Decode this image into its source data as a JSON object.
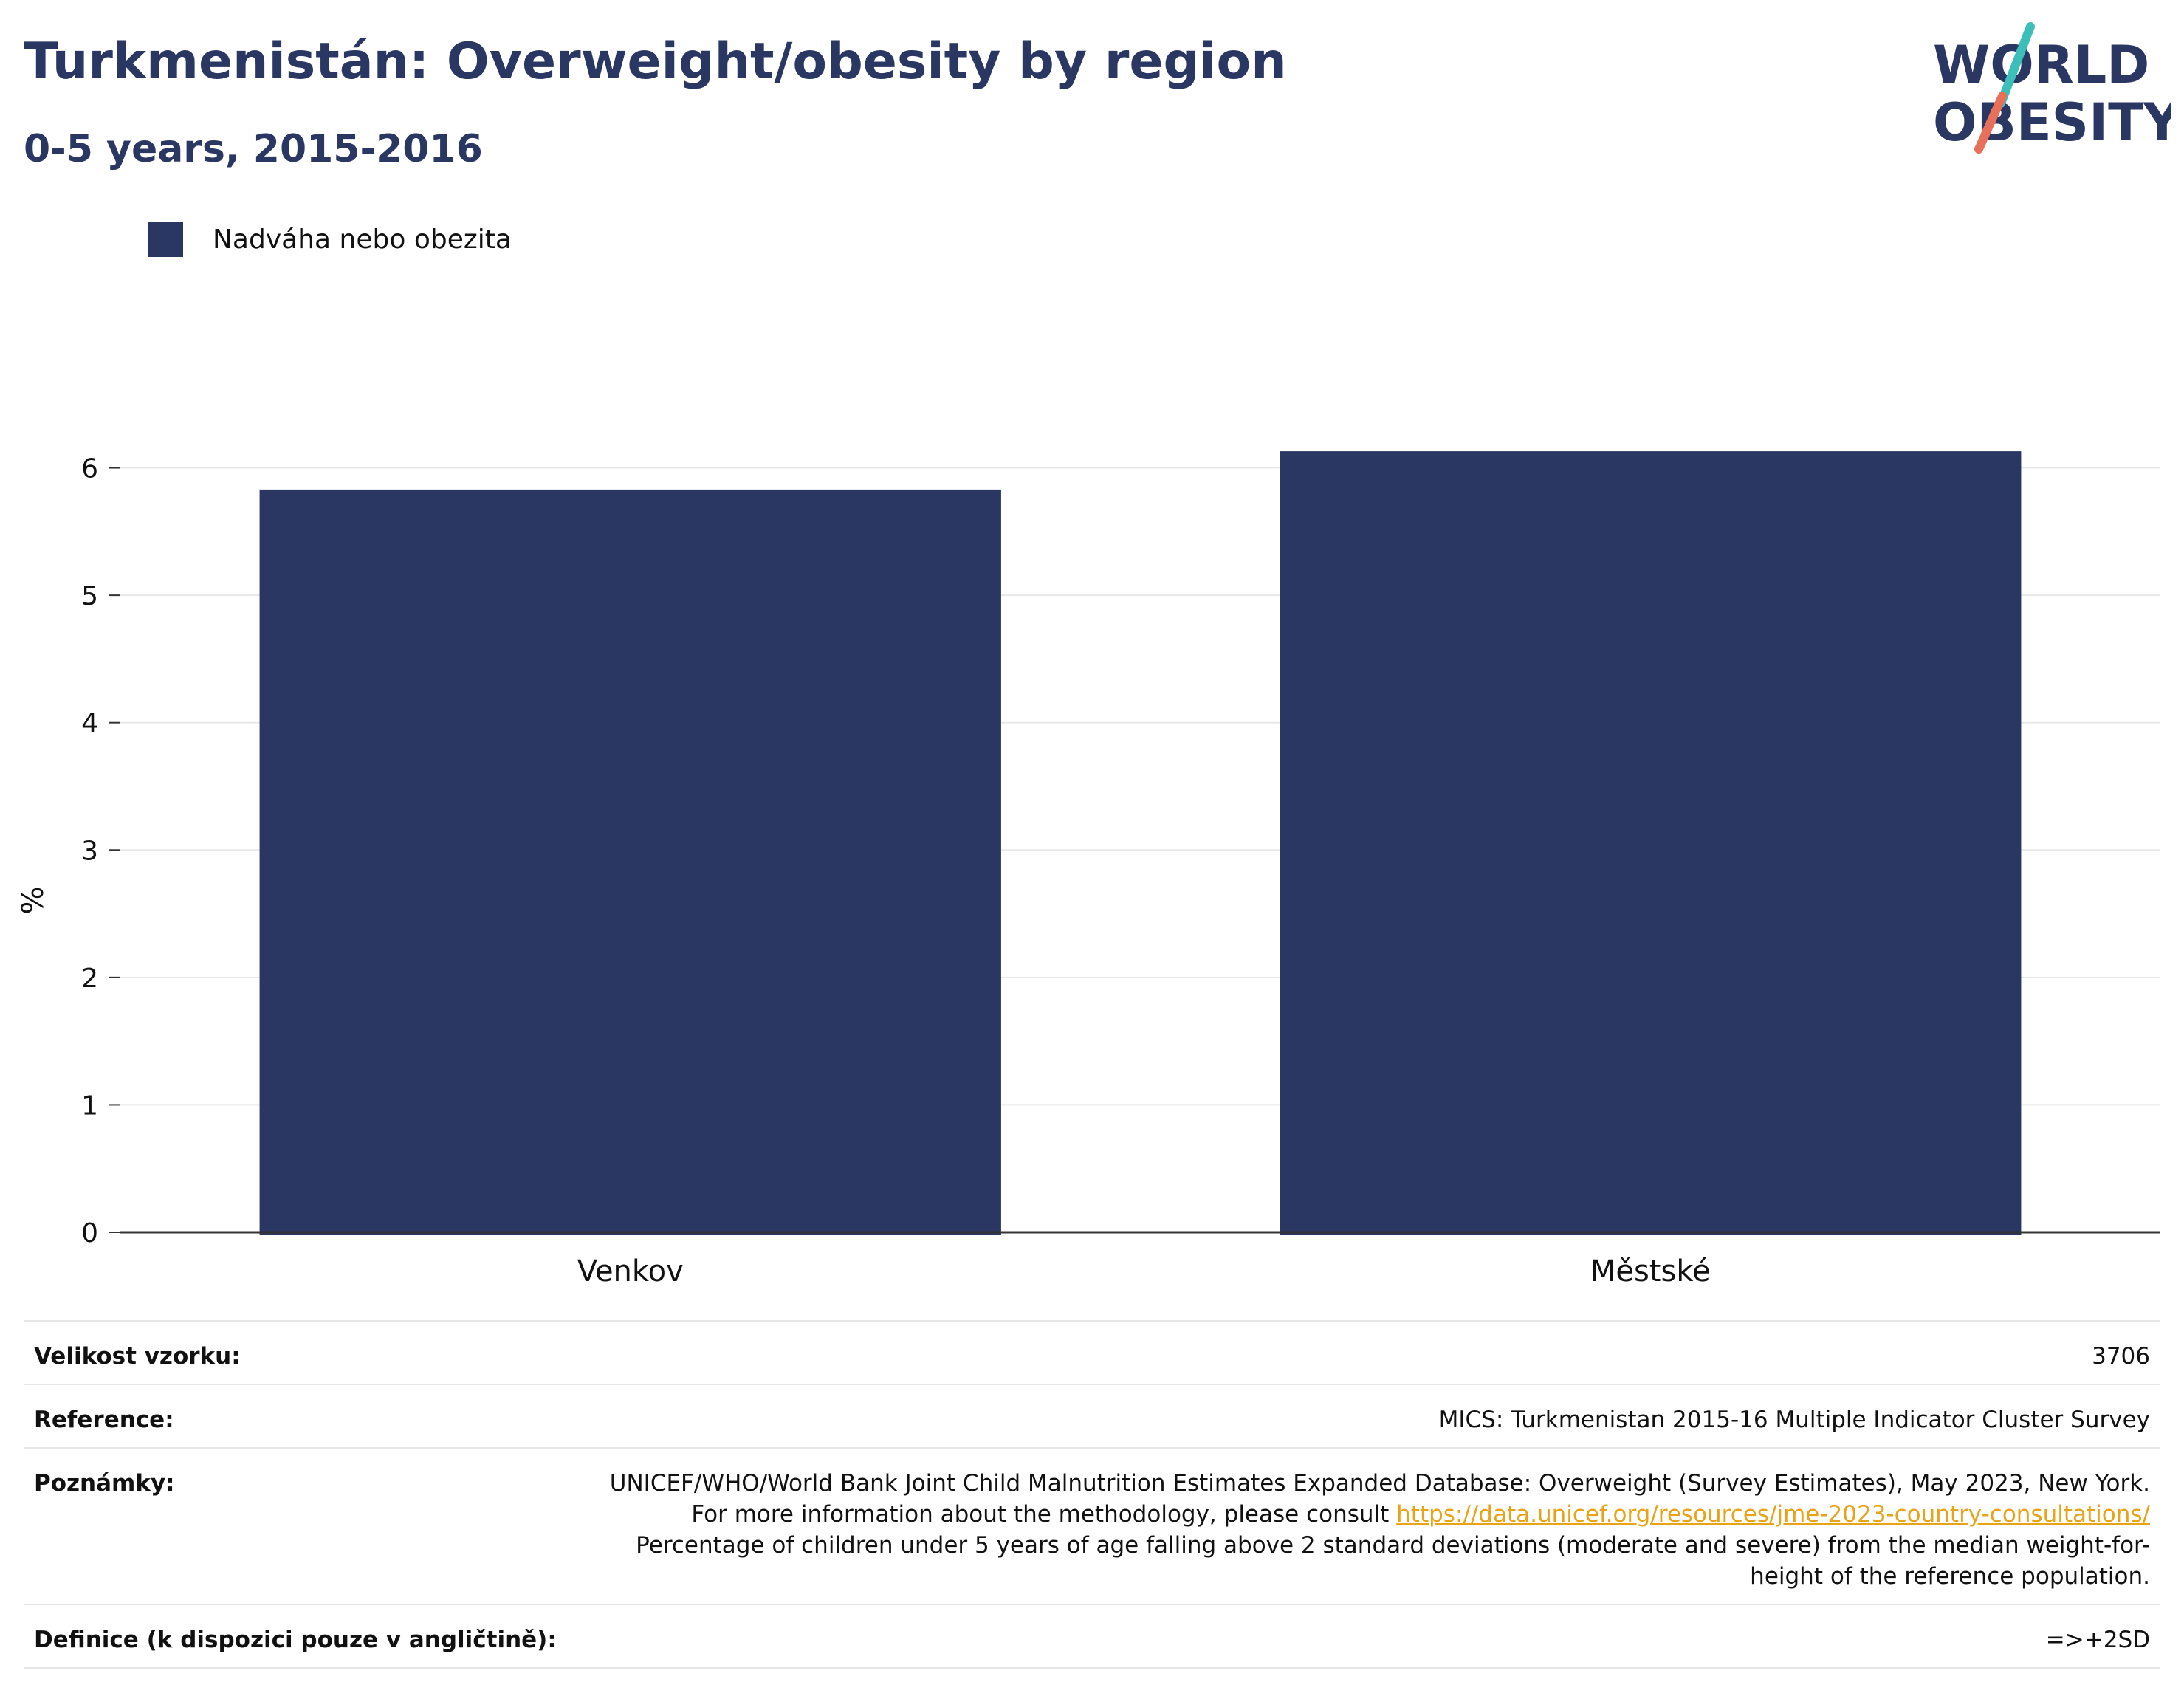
{
  "header": {
    "title": "Turkmenistán: Overweight/obesity by region",
    "subtitle": "0-5 years, 2015-2016"
  },
  "logo": {
    "line1": "WORLD",
    "line2": "OBESITY",
    "colors": {
      "text": "#2a3763",
      "slash_top": "#3bbfb8",
      "slash_bottom": "#e8705a"
    }
  },
  "colors": {
    "bar": "#2a3763",
    "grid": "#e8e8e8",
    "axis": "#333333",
    "link": "#e8a317"
  },
  "chart_data": {
    "type": "bar",
    "categories": [
      "Venkov",
      "Městské"
    ],
    "series": [
      {
        "name": "Nadváha nebo obezita",
        "values": [
          5.83,
          6.13
        ]
      }
    ],
    "ylabel": "%",
    "yticks": [
      0,
      1,
      2,
      3,
      4,
      5,
      6
    ],
    "ylim": [
      0,
      6.6
    ],
    "grid": true,
    "legend_position": "top-left"
  },
  "meta": {
    "sample_label": "Velikost vzorku:",
    "sample_value": "3706",
    "reference_label": "Reference:",
    "reference_value": "MICS: Turkmenistan 2015-16 Multiple Indicator Cluster Survey",
    "notes_label": "Poznámky:",
    "notes_text_1": "UNICEF/WHO/World Bank Joint Child Malnutrition Estimates Expanded Database: Overweight (Survey Estimates), May 2023, New York. For more information about the methodology, please consult ",
    "notes_link": "https://data.unicef.org/resources/jme-2023-country-consultations/",
    "notes_text_2": "Percentage of children under 5 years of age falling above 2 standard deviations (moderate and severe) from the median weight-for-height of the reference population.",
    "definition_label": "Definice (k dispozici pouze v angličtině):",
    "definition_value": "=>+2SD"
  }
}
